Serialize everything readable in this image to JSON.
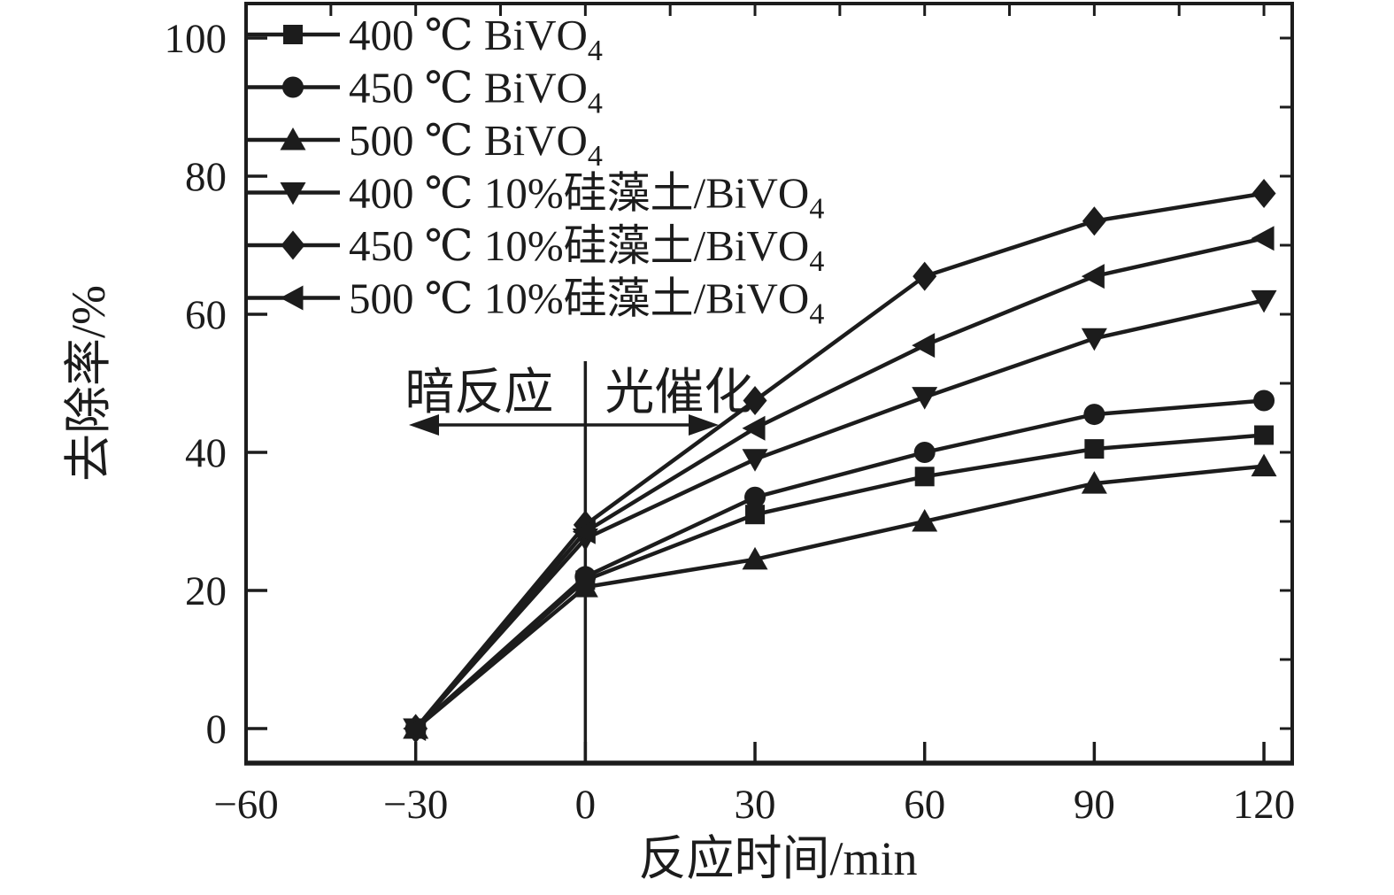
{
  "figure": {
    "xlabel": "反应时间/min",
    "ylabel": "去除率/%",
    "annotation": {
      "left": "暗反应",
      "right": "光催化"
    },
    "ink_color": "#1c1c1c",
    "background": "#ffffff"
  },
  "chart_data": {
    "type": "line",
    "x": [
      -30,
      0,
      30,
      60,
      90,
      120
    ],
    "series": [
      {
        "name": "400C-BiVO4",
        "label_main": "400 ℃ BiVO",
        "label_sub": "4",
        "marker": "square",
        "values": [
          0,
          21.5,
          31,
          36.5,
          40.5,
          42.5
        ]
      },
      {
        "name": "450C-BiVO4",
        "label_main": "450 ℃ BiVO",
        "label_sub": "4",
        "marker": "circle",
        "values": [
          0,
          22,
          33.5,
          40,
          45.5,
          47.5
        ]
      },
      {
        "name": "500C-BiVO4",
        "label_main": "500 ℃ BiVO",
        "label_sub": "4",
        "marker": "triangle-up",
        "values": [
          0,
          20.5,
          24.5,
          30,
          35.5,
          38
        ]
      },
      {
        "name": "400C-10pct-guizaotu-BiVO4",
        "label_main": "400 ℃ 10%硅藻土/BiVO",
        "label_sub": "4",
        "marker": "triangle-down",
        "values": [
          0,
          27.5,
          39,
          48,
          56.5,
          62
        ]
      },
      {
        "name": "450C-10pct-guizaotu-BiVO4",
        "label_main": "450 ℃ 10%硅藻土/BiVO",
        "label_sub": "4",
        "marker": "diamond",
        "values": [
          0,
          29.5,
          47.5,
          65.5,
          73.5,
          77.5
        ]
      },
      {
        "name": "500C-10pct-guizaotu-BiVO4",
        "label_main": "500 ℃ 10%硅藻土/BiVO",
        "label_sub": "4",
        "marker": "triangle-left",
        "values": [
          0,
          28.5,
          43.5,
          55.5,
          65.5,
          71
        ]
      }
    ],
    "xticks": {
      "values": [
        -60,
        -30,
        0,
        30,
        60,
        90,
        120
      ],
      "labels": [
        "−60",
        "−30",
        "0",
        "30",
        "60",
        "90",
        "120"
      ]
    },
    "yticks": {
      "values": [
        0,
        20,
        40,
        60,
        80,
        100
      ],
      "labels": [
        "0",
        "20",
        "40",
        "60",
        "80",
        "100"
      ]
    },
    "minor_ticks": {
      "top_step_min": 15,
      "right_step_pct": 10
    },
    "xlim": [
      -60,
      125
    ],
    "ylim": [
      -5,
      105
    ],
    "title": "",
    "legend_position": "top-left-inside",
    "grid": false,
    "phase_boundary_x": 0
  }
}
